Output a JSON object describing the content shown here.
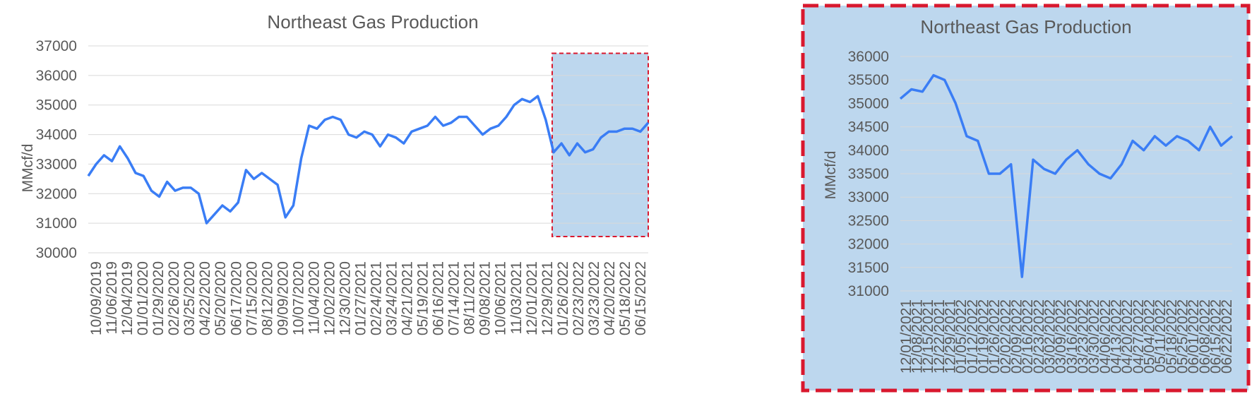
{
  "colors": {
    "line": "#3a7df5",
    "highlight_fill": "#bdd7ee",
    "highlight_border": "#d9182e",
    "grid": "#d9d9d9",
    "text": "#595959"
  },
  "chart_data": [
    {
      "type": "line",
      "title": "Northeast Gas Production",
      "ylabel": "MMcf/d",
      "xlabel": "",
      "ylim": [
        30000,
        37000
      ],
      "yticks": [
        30000,
        31000,
        32000,
        33000,
        34000,
        35000,
        36000,
        37000
      ],
      "grid": true,
      "highlight_region": {
        "x_start": "01/12/2022",
        "x_end": "06/29/2022",
        "y_min": 30550,
        "y_max": 36750,
        "style": "dashed"
      },
      "x_tick_labels": [
        "10/09/2019",
        "11/06/2019",
        "12/04/2019",
        "01/01/2020",
        "01/29/2020",
        "02/26/2020",
        "03/25/2020",
        "04/22/2020",
        "05/20/2020",
        "06/17/2020",
        "07/15/2020",
        "08/12/2020",
        "09/09/2020",
        "10/07/2020",
        "11/04/2020",
        "12/02/2020",
        "12/30/2020",
        "01/27/2021",
        "02/24/2021",
        "03/24/2021",
        "04/21/2021",
        "05/19/2021",
        "06/16/2021",
        "07/14/2021",
        "08/11/2021",
        "09/08/2021",
        "10/06/2021",
        "11/03/2021",
        "12/01/2021",
        "12/29/2021",
        "01/26/2022",
        "02/23/2022",
        "03/23/2022",
        "04/20/2022",
        "05/18/2022",
        "06/15/2022"
      ],
      "series": [
        {
          "x": [
            "10/09/2019",
            "10/23/2019",
            "11/06/2019",
            "11/20/2019",
            "12/04/2019",
            "12/18/2019",
            "01/01/2020",
            "01/15/2020",
            "01/29/2020",
            "02/12/2020",
            "02/26/2020",
            "03/11/2020",
            "03/25/2020",
            "04/08/2020",
            "04/22/2020",
            "05/06/2020",
            "05/20/2020",
            "06/03/2020",
            "06/17/2020",
            "07/01/2020",
            "07/15/2020",
            "07/29/2020",
            "08/12/2020",
            "08/26/2020",
            "09/09/2020",
            "09/23/2020",
            "10/07/2020",
            "10/21/2020",
            "11/04/2020",
            "11/18/2020",
            "12/02/2020",
            "12/16/2020",
            "12/30/2020",
            "01/13/2021",
            "01/27/2021",
            "02/10/2021",
            "02/24/2021",
            "03/10/2021",
            "03/24/2021",
            "04/07/2021",
            "04/21/2021",
            "05/05/2021",
            "05/19/2021",
            "06/02/2021",
            "06/16/2021",
            "06/30/2021",
            "07/14/2021",
            "07/28/2021",
            "08/11/2021",
            "08/25/2021",
            "09/08/2021",
            "09/22/2021",
            "10/06/2021",
            "10/20/2021",
            "11/03/2021",
            "11/17/2021",
            "12/01/2021",
            "12/15/2021",
            "12/29/2021",
            "01/12/2022",
            "01/26/2022",
            "02/09/2022",
            "02/23/2022",
            "03/09/2022",
            "03/23/2022",
            "04/06/2022",
            "04/20/2022",
            "05/04/2022",
            "05/18/2022",
            "06/01/2022",
            "06/15/2022",
            "06/29/2022"
          ],
          "values": [
            32600,
            33000,
            33300,
            33100,
            33600,
            33200,
            32700,
            32600,
            32100,
            31900,
            32400,
            32100,
            32200,
            32200,
            32000,
            31000,
            31300,
            31600,
            31400,
            31700,
            32800,
            32500,
            32700,
            32500,
            32300,
            31200,
            31600,
            33200,
            34300,
            34200,
            34500,
            34600,
            34500,
            34000,
            33900,
            34100,
            34000,
            33600,
            34000,
            33900,
            33700,
            34100,
            34200,
            34300,
            34600,
            34300,
            34400,
            34600,
            34600,
            34300,
            34000,
            34200,
            34300,
            34600,
            35000,
            35200,
            35100,
            35300,
            34500,
            33400,
            33700,
            33300,
            33700,
            33400,
            33500,
            33900,
            34100,
            34100,
            34200,
            34200,
            34100,
            34400
          ]
        }
      ]
    },
    {
      "type": "line",
      "title": "Northeast Gas Production",
      "ylabel": "MMcf/d",
      "xlabel": "",
      "ylim": [
        31000,
        36000
      ],
      "yticks": [
        31000,
        31500,
        32000,
        32500,
        33000,
        33500,
        34000,
        34500,
        35000,
        35500,
        36000
      ],
      "grid": true,
      "x_tick_labels": [
        "12/01/2021",
        "12/08/2021",
        "12/15/2021",
        "12/22/2021",
        "12/29/2021",
        "01/05/2022",
        "01/12/2022",
        "01/19/2022",
        "01/26/2022",
        "02/02/2022",
        "02/09/2022",
        "02/16/2022",
        "02/23/2022",
        "03/02/2022",
        "03/09/2022",
        "03/16/2022",
        "03/23/2022",
        "03/30/2022",
        "04/06/2022",
        "04/13/2022",
        "04/20/2022",
        "04/27/2022",
        "05/04/2022",
        "05/11/2022",
        "05/18/2022",
        "05/25/2022",
        "06/01/2022",
        "06/08/2022",
        "06/15/2022",
        "06/22/2022"
      ],
      "series": [
        {
          "x": [
            "12/01/2021",
            "12/08/2021",
            "12/15/2021",
            "12/22/2021",
            "12/29/2021",
            "01/05/2022",
            "01/12/2022",
            "01/19/2022",
            "01/26/2022",
            "02/02/2022",
            "02/09/2022",
            "02/16/2022",
            "02/23/2022",
            "03/02/2022",
            "03/09/2022",
            "03/16/2022",
            "03/23/2022",
            "03/30/2022",
            "04/06/2022",
            "04/13/2022",
            "04/20/2022",
            "04/27/2022",
            "05/04/2022",
            "05/11/2022",
            "05/18/2022",
            "05/25/2022",
            "06/01/2022",
            "06/08/2022",
            "06/15/2022",
            "06/22/2022",
            "06/29/2022"
          ],
          "values": [
            35100,
            35300,
            35250,
            35600,
            35500,
            35000,
            34300,
            34200,
            33500,
            33500,
            33700,
            31300,
            33800,
            33600,
            33500,
            33800,
            34000,
            33700,
            33500,
            33400,
            33700,
            34200,
            34000,
            34300,
            34100,
            34300,
            34200,
            34000,
            34500,
            34100,
            34300
          ]
        }
      ]
    }
  ]
}
